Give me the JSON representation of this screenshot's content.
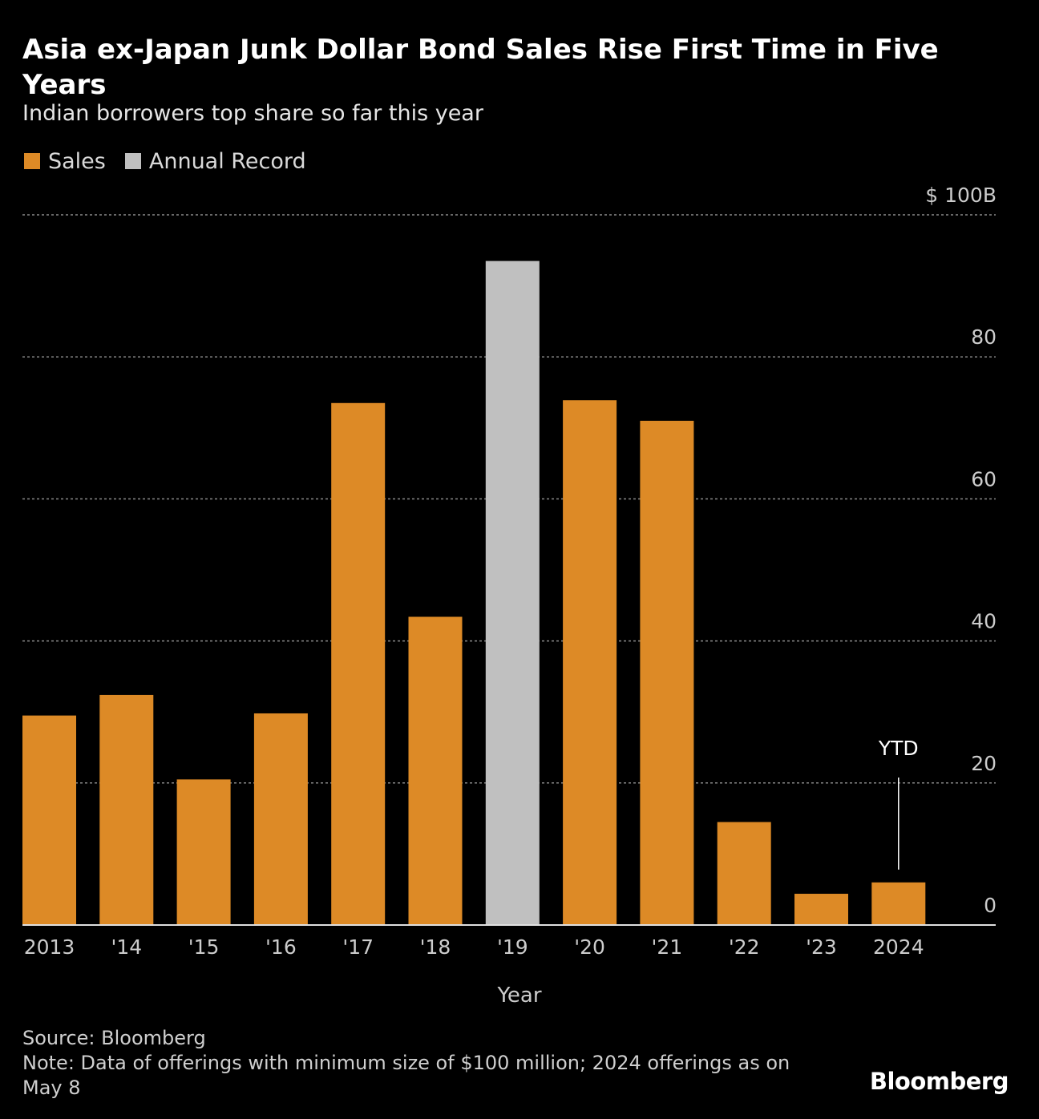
{
  "title": "Asia ex-Japan Junk Dollar Bond Sales Rise First Time in Five Years",
  "subtitle": "Indian borrowers top share so far this year",
  "legend": [
    {
      "label": "Sales",
      "color": "#dd8a26"
    },
    {
      "label": "Annual Record",
      "color": "#c0c0c0"
    }
  ],
  "source": "Source: Bloomberg",
  "note": "Note: Data of offerings with minimum size of $100 million; 2024 offerings as on May 8",
  "brand": "Bloomberg",
  "colors": {
    "sales": "#dd8a26",
    "record": "#c0c0c0",
    "grid": "#8a8a8a",
    "axis": "#cccccc"
  },
  "chart_data": {
    "type": "bar",
    "title": "Asia ex-Japan Junk Dollar Bond Sales Rise First Time in Five Years",
    "xlabel": "Year",
    "ylabel": "",
    "y_unit_label": "$ 100B",
    "ylim": [
      0,
      100
    ],
    "yticks": [
      0,
      20,
      40,
      60,
      80,
      100
    ],
    "ytick_labels": [
      "0",
      "20",
      "40",
      "60",
      "80",
      "$ 100B"
    ],
    "categories": [
      "2013",
      "'14",
      "'15",
      "'16",
      "'17",
      "'18",
      "'19",
      "'20",
      "'21",
      "'22",
      "'23",
      "2024"
    ],
    "series": [
      {
        "name": "Sales",
        "values": [
          29.5,
          32.4,
          20.5,
          29.8,
          73.5,
          43.4,
          93.5,
          73.9,
          71.0,
          14.5,
          4.4,
          6.0
        ],
        "record_index": 6
      }
    ],
    "annotations": [
      {
        "category": "2024",
        "text": "YTD"
      }
    ]
  }
}
